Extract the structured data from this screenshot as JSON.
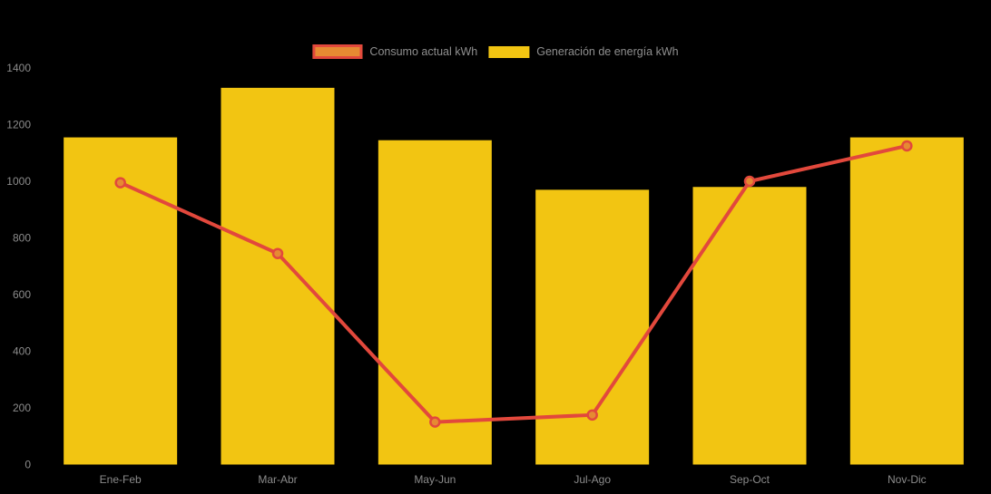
{
  "page": {
    "background": "#000000"
  },
  "legend": {
    "position": "top-center",
    "items": [
      {
        "label": "Consumo actual kWh",
        "type": "line",
        "swatch_fill": "#E68A32",
        "swatch_border": "#E2483C"
      },
      {
        "label": "Generación de energía kWh",
        "type": "bar",
        "swatch_fill": "#F2C512"
      }
    ]
  },
  "chart_data": {
    "type": "bar+line",
    "title": "",
    "xlabel": "",
    "ylabel": "",
    "categories": [
      "Ene-Feb",
      "Mar-Abr",
      "May-Jun",
      "Jul-Ago",
      "Sep-Oct",
      "Nov-Dic"
    ],
    "series": [
      {
        "name": "Generación de energía kWh",
        "type": "bar",
        "color": "#F2C512",
        "values": [
          1155,
          1330,
          1145,
          970,
          980,
          1155
        ]
      },
      {
        "name": "Consumo actual kWh",
        "type": "line",
        "color": "#E2483C",
        "marker_fill": "#E68A32",
        "values": [
          995,
          745,
          150,
          175,
          1000,
          1125
        ]
      }
    ],
    "ylim": [
      0,
      1400
    ],
    "yticks": [
      0,
      200,
      400,
      600,
      800,
      1000,
      1200,
      1400
    ],
    "grid": false,
    "background": "#000000",
    "axis_label_color": "#8C8C8C",
    "legend_position": "top-center"
  }
}
